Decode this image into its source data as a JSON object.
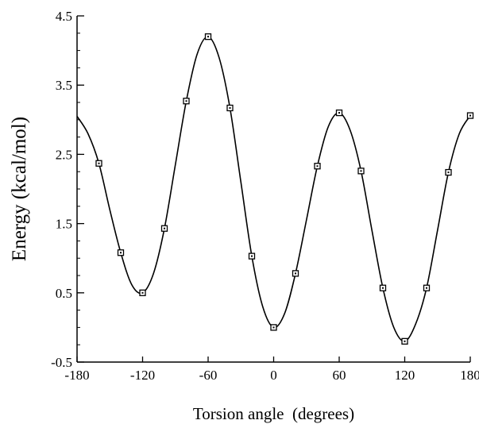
{
  "chart_data": {
    "type": "scatter",
    "title": "",
    "xlabel": "Torsion angle  (degrees)",
    "ylabel": "Energy (kcal/mol)",
    "xlim": [
      -180,
      180
    ],
    "ylim": [
      -0.5,
      4.5
    ],
    "x_ticks": [
      -180,
      -120,
      -60,
      0,
      60,
      120,
      180
    ],
    "x_tick_labels": [
      "-180",
      "-120",
      "-60",
      "0",
      "60",
      "120",
      "180"
    ],
    "y_ticks": [
      -0.5,
      0.5,
      1.5,
      2.5,
      3.5,
      4.5
    ],
    "y_tick_labels": [
      "-0.5",
      "0.5",
      "1.5",
      "2.5",
      "3.5",
      "4.5"
    ],
    "grid": false,
    "series": [
      {
        "mode": "markers",
        "marker": "open-square",
        "x": [
          -160,
          -140,
          -120,
          -100,
          -80,
          -60,
          -40,
          -20,
          0,
          20,
          40,
          60,
          80,
          100,
          120,
          140,
          160,
          180
        ],
        "y": [
          2.37,
          1.08,
          0.5,
          1.43,
          3.27,
          4.2,
          3.17,
          1.03,
          0.0,
          0.78,
          2.33,
          3.1,
          2.26,
          0.57,
          -0.2,
          0.57,
          2.24,
          3.06
        ]
      },
      {
        "mode": "line",
        "x": [
          -180,
          -170,
          -160,
          -150,
          -140,
          -130,
          -120,
          -110,
          -100,
          -90,
          -80,
          -70,
          -60,
          -50,
          -40,
          -30,
          -20,
          -10,
          0,
          10,
          20,
          30,
          40,
          50,
          60,
          70,
          80,
          90,
          100,
          110,
          120,
          130,
          140,
          150,
          160,
          170,
          180
        ],
        "y": [
          3.05,
          2.8,
          2.37,
          1.7,
          1.08,
          0.62,
          0.5,
          0.78,
          1.43,
          2.35,
          3.27,
          3.95,
          4.2,
          3.9,
          3.17,
          2.1,
          1.03,
          0.3,
          0.0,
          0.2,
          0.78,
          1.55,
          2.33,
          2.9,
          3.1,
          2.85,
          2.26,
          1.4,
          0.57,
          0.0,
          -0.2,
          0.05,
          0.57,
          1.4,
          2.24,
          2.8,
          3.06
        ]
      }
    ]
  }
}
